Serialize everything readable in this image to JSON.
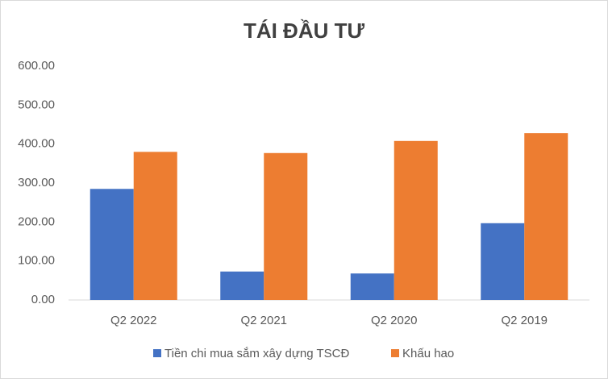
{
  "chart_data": {
    "type": "bar",
    "title": "TÁI ĐẦU TƯ",
    "categories": [
      "Q2 2022",
      "Q2 2021",
      "Q2 2020",
      "Q2 2019"
    ],
    "series": [
      {
        "name": "Tiền chi mua sắm xây dựng TSCĐ",
        "color": "#4472c4",
        "values": [
          285,
          73,
          68,
          197
        ]
      },
      {
        "name": "Khấu hao",
        "color": "#ed7d31",
        "values": [
          380,
          377,
          408,
          428
        ]
      }
    ],
    "ylim": [
      0,
      600
    ],
    "yticks": [
      {
        "value": 0,
        "label": "0.00"
      },
      {
        "value": 100,
        "label": "100.00"
      },
      {
        "value": 200,
        "label": "200.00"
      },
      {
        "value": 300,
        "label": "300.00"
      },
      {
        "value": 400,
        "label": "400.00"
      },
      {
        "value": 500,
        "label": "500.00"
      },
      {
        "value": 600,
        "label": "600.00"
      }
    ],
    "grid": false,
    "legend": "bottom"
  }
}
